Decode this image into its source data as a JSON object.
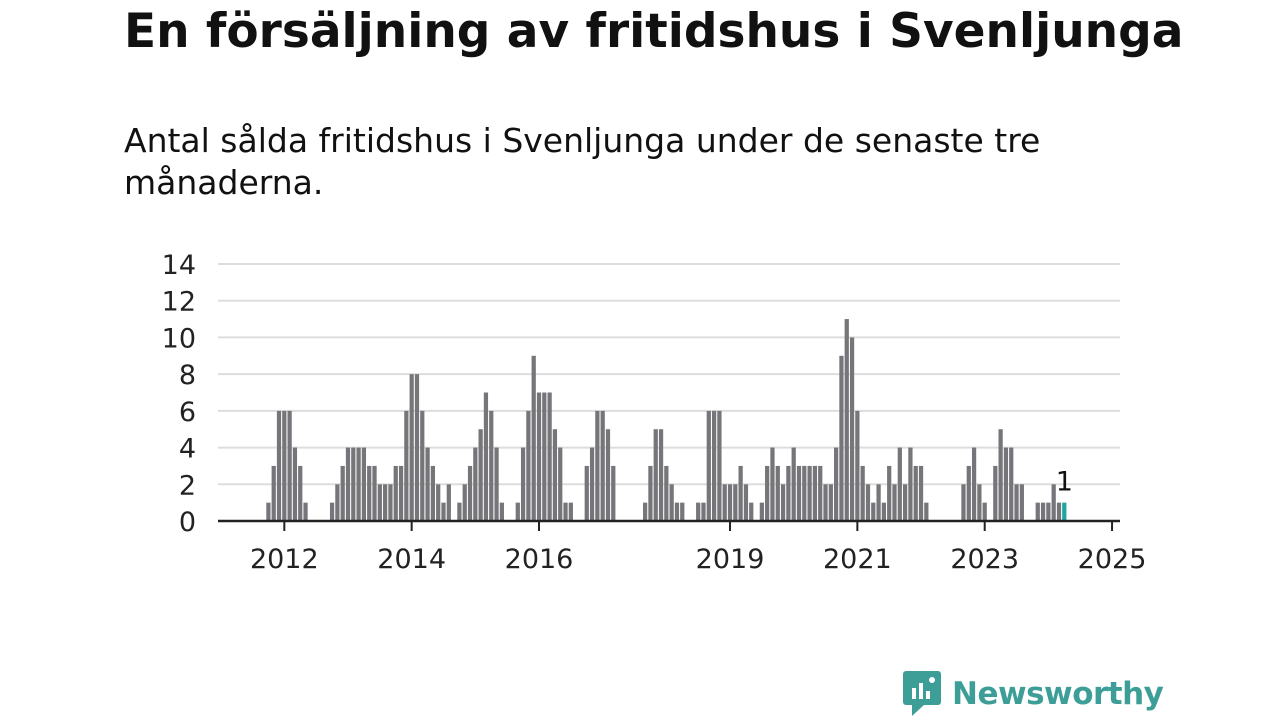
{
  "title": "En försäljning av fritidshus i Svenljunga",
  "subtitle": "Antal sålda fritidshus i Svenljunga under de senaste tre månaderna.",
  "brand": {
    "name": "Newsworthy",
    "color": "#3d9e98",
    "icon": "newsworthy-chat-bar-icon"
  },
  "colors": {
    "bar": "#76767a",
    "highlight": "#1fa59f",
    "grid": "#dddddd",
    "axis": "#222222",
    "text": "#222222"
  },
  "chart_data": {
    "type": "bar",
    "x_start": "2011-01",
    "x_end": "2025-03",
    "x_tick_labels": [
      "2012",
      "2014",
      "2016",
      "2019",
      "2021",
      "2023",
      "2025"
    ],
    "x_tick_months": [
      "2012-01",
      "2014-01",
      "2016-01",
      "2019-01",
      "2021-01",
      "2023-01",
      "2025-01"
    ],
    "y_ticks": [
      "0",
      "2",
      "4",
      "6",
      "8",
      "10",
      "12",
      "14"
    ],
    "ylim": [
      0,
      14
    ],
    "grid": true,
    "highlight_label": "1",
    "series": [
      {
        "points": [
          [
            "2011-10",
            1
          ],
          [
            "2011-11",
            3
          ],
          [
            "2011-12",
            6
          ],
          [
            "2012-01",
            6
          ],
          [
            "2012-02",
            6
          ],
          [
            "2012-03",
            4
          ],
          [
            "2012-04",
            3
          ],
          [
            "2012-05",
            1
          ],
          [
            "2012-10",
            1
          ],
          [
            "2012-11",
            2
          ],
          [
            "2012-12",
            3
          ],
          [
            "2013-01",
            4
          ],
          [
            "2013-02",
            4
          ],
          [
            "2013-03",
            4
          ],
          [
            "2013-04",
            4
          ],
          [
            "2013-05",
            3
          ],
          [
            "2013-06",
            3
          ],
          [
            "2013-07",
            2
          ],
          [
            "2013-08",
            2
          ],
          [
            "2013-09",
            2
          ],
          [
            "2013-10",
            3
          ],
          [
            "2013-11",
            3
          ],
          [
            "2013-12",
            6
          ],
          [
            "2014-01",
            8
          ],
          [
            "2014-02",
            8
          ],
          [
            "2014-03",
            6
          ],
          [
            "2014-04",
            4
          ],
          [
            "2014-05",
            3
          ],
          [
            "2014-06",
            2
          ],
          [
            "2014-07",
            1
          ],
          [
            "2014-08",
            2
          ],
          [
            "2014-10",
            1
          ],
          [
            "2014-11",
            2
          ],
          [
            "2014-12",
            3
          ],
          [
            "2015-01",
            4
          ],
          [
            "2015-02",
            5
          ],
          [
            "2015-03",
            7
          ],
          [
            "2015-04",
            6
          ],
          [
            "2015-05",
            4
          ],
          [
            "2015-06",
            1
          ],
          [
            "2015-09",
            1
          ],
          [
            "2015-10",
            4
          ],
          [
            "2015-11",
            6
          ],
          [
            "2015-12",
            9
          ],
          [
            "2016-01",
            7
          ],
          [
            "2016-02",
            7
          ],
          [
            "2016-03",
            7
          ],
          [
            "2016-04",
            5
          ],
          [
            "2016-05",
            4
          ],
          [
            "2016-06",
            1
          ],
          [
            "2016-07",
            1
          ],
          [
            "2016-10",
            3
          ],
          [
            "2016-11",
            4
          ],
          [
            "2016-12",
            6
          ],
          [
            "2017-01",
            6
          ],
          [
            "2017-02",
            5
          ],
          [
            "2017-03",
            3
          ],
          [
            "2017-09",
            1
          ],
          [
            "2017-10",
            3
          ],
          [
            "2017-11",
            5
          ],
          [
            "2017-12",
            5
          ],
          [
            "2018-01",
            3
          ],
          [
            "2018-02",
            2
          ],
          [
            "2018-03",
            1
          ],
          [
            "2018-04",
            1
          ],
          [
            "2018-07",
            1
          ],
          [
            "2018-08",
            1
          ],
          [
            "2018-09",
            6
          ],
          [
            "2018-10",
            6
          ],
          [
            "2018-11",
            6
          ],
          [
            "2018-12",
            2
          ],
          [
            "2019-01",
            2
          ],
          [
            "2019-02",
            2
          ],
          [
            "2019-03",
            3
          ],
          [
            "2019-04",
            2
          ],
          [
            "2019-05",
            1
          ],
          [
            "2019-07",
            1
          ],
          [
            "2019-08",
            3
          ],
          [
            "2019-09",
            4
          ],
          [
            "2019-10",
            3
          ],
          [
            "2019-11",
            2
          ],
          [
            "2019-12",
            3
          ],
          [
            "2020-01",
            4
          ],
          [
            "2020-02",
            3
          ],
          [
            "2020-03",
            3
          ],
          [
            "2020-04",
            3
          ],
          [
            "2020-05",
            3
          ],
          [
            "2020-06",
            3
          ],
          [
            "2020-07",
            2
          ],
          [
            "2020-08",
            2
          ],
          [
            "2020-09",
            4
          ],
          [
            "2020-10",
            9
          ],
          [
            "2020-11",
            11
          ],
          [
            "2020-12",
            10
          ],
          [
            "2021-01",
            6
          ],
          [
            "2021-02",
            3
          ],
          [
            "2021-03",
            2
          ],
          [
            "2021-04",
            1
          ],
          [
            "2021-05",
            2
          ],
          [
            "2021-06",
            1
          ],
          [
            "2021-07",
            3
          ],
          [
            "2021-08",
            2
          ],
          [
            "2021-09",
            4
          ],
          [
            "2021-10",
            2
          ],
          [
            "2021-11",
            4
          ],
          [
            "2021-12",
            3
          ],
          [
            "2022-01",
            3
          ],
          [
            "2022-02",
            1
          ],
          [
            "2022-09",
            2
          ],
          [
            "2022-10",
            3
          ],
          [
            "2022-11",
            4
          ],
          [
            "2022-12",
            2
          ],
          [
            "2023-01",
            1
          ],
          [
            "2023-03",
            3
          ],
          [
            "2023-04",
            5
          ],
          [
            "2023-05",
            4
          ],
          [
            "2023-06",
            4
          ],
          [
            "2023-07",
            2
          ],
          [
            "2023-08",
            2
          ],
          [
            "2023-11",
            1
          ],
          [
            "2023-12",
            1
          ],
          [
            "2024-01",
            1
          ],
          [
            "2024-02",
            2
          ],
          [
            "2024-03",
            1
          ]
        ]
      },
      {
        "highlight": true,
        "points": [
          [
            "2024-04",
            1
          ]
        ]
      }
    ]
  }
}
